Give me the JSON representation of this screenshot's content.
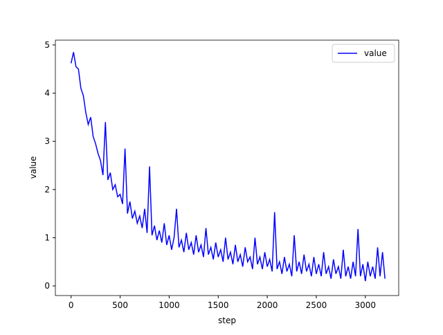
{
  "chart_data": {
    "type": "line",
    "xlabel": "step",
    "ylabel": "value",
    "x": [
      0,
      25,
      50,
      75,
      100,
      125,
      150,
      175,
      200,
      225,
      250,
      275,
      300,
      325,
      350,
      375,
      400,
      425,
      450,
      475,
      500,
      525,
      550,
      575,
      600,
      625,
      650,
      675,
      700,
      725,
      750,
      775,
      800,
      825,
      850,
      875,
      900,
      925,
      950,
      975,
      1000,
      1025,
      1050,
      1075,
      1100,
      1125,
      1150,
      1175,
      1200,
      1225,
      1250,
      1275,
      1300,
      1325,
      1350,
      1375,
      1400,
      1425,
      1450,
      1475,
      1500,
      1525,
      1550,
      1575,
      1600,
      1625,
      1650,
      1675,
      1700,
      1725,
      1750,
      1775,
      1800,
      1825,
      1850,
      1875,
      1900,
      1925,
      1950,
      1975,
      2000,
      2025,
      2050,
      2075,
      2100,
      2125,
      2150,
      2175,
      2200,
      2225,
      2250,
      2275,
      2300,
      2325,
      2350,
      2375,
      2400,
      2425,
      2450,
      2475,
      2500,
      2525,
      2550,
      2575,
      2600,
      2625,
      2650,
      2675,
      2700,
      2725,
      2750,
      2775,
      2800,
      2825,
      2850,
      2875,
      2900,
      2925,
      2950,
      2975,
      3000,
      3025,
      3050,
      3075,
      3100,
      3125,
      3150,
      3175,
      3200
    ],
    "series": [
      {
        "name": "value",
        "color": "#0000ff",
        "values": [
          4.62,
          4.85,
          4.55,
          4.5,
          4.1,
          3.95,
          3.6,
          3.35,
          3.5,
          3.1,
          2.95,
          2.75,
          2.6,
          2.3,
          3.4,
          2.2,
          2.35,
          2.0,
          2.1,
          1.85,
          1.9,
          1.7,
          2.85,
          1.5,
          1.75,
          1.4,
          1.55,
          1.3,
          1.45,
          1.2,
          1.6,
          1.1,
          2.48,
          1.05,
          1.25,
          0.95,
          1.15,
          0.9,
          1.3,
          0.85,
          1.05,
          0.75,
          1.0,
          1.6,
          0.8,
          0.95,
          0.7,
          1.1,
          0.75,
          0.9,
          0.65,
          1.05,
          0.7,
          0.85,
          0.6,
          1.2,
          0.65,
          0.8,
          0.55,
          0.9,
          0.6,
          0.75,
          0.5,
          1.0,
          0.55,
          0.7,
          0.45,
          0.85,
          0.5,
          0.65,
          0.4,
          0.8,
          0.5,
          0.6,
          0.35,
          1.0,
          0.45,
          0.6,
          0.35,
          0.7,
          0.4,
          0.55,
          0.3,
          1.53,
          0.35,
          0.5,
          0.25,
          0.6,
          0.3,
          0.45,
          0.2,
          1.05,
          0.3,
          0.5,
          0.25,
          0.65,
          0.3,
          0.45,
          0.2,
          0.6,
          0.25,
          0.45,
          0.2,
          0.7,
          0.25,
          0.4,
          0.15,
          0.55,
          0.25,
          0.4,
          0.15,
          0.75,
          0.2,
          0.4,
          0.15,
          0.5,
          0.2,
          1.18,
          0.2,
          0.45,
          0.1,
          0.5,
          0.2,
          0.4,
          0.15,
          0.8,
          0.2,
          0.7,
          0.15
        ]
      }
    ],
    "xlim": [
      -160,
      3340
    ],
    "ylim": [
      -0.2,
      5.1
    ],
    "xticks": [
      0,
      500,
      1000,
      1500,
      2000,
      2500,
      3000
    ],
    "yticks": [
      0,
      1,
      2,
      3,
      4,
      5
    ],
    "legend": "upper right"
  }
}
